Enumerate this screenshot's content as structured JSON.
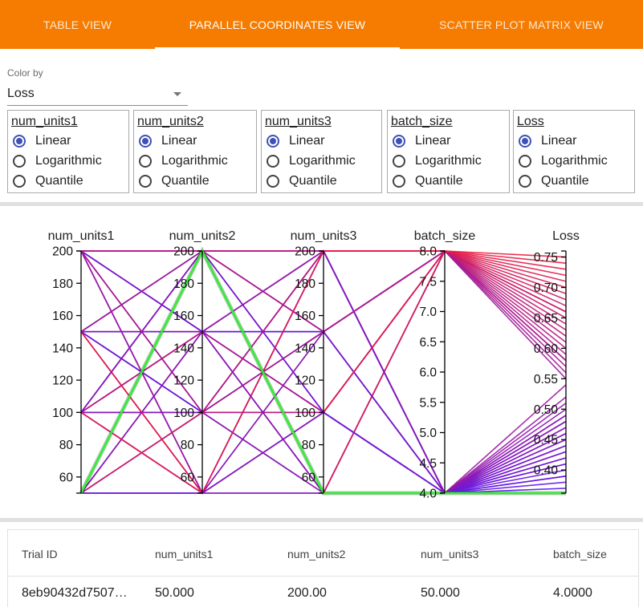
{
  "tabs": [
    {
      "label": "TABLE VIEW",
      "active": false
    },
    {
      "label": "PARALLEL COORDINATES VIEW",
      "active": true
    },
    {
      "label": "SCATTER PLOT MATRIX VIEW",
      "active": false
    }
  ],
  "color_by": {
    "label": "Color by",
    "value": "Loss"
  },
  "scale_options": [
    "Linear",
    "Logarithmic",
    "Quantile"
  ],
  "scales": [
    {
      "name": "num_units1",
      "selected": "Linear"
    },
    {
      "name": "num_units2",
      "selected": "Linear"
    },
    {
      "name": "num_units3",
      "selected": "Linear"
    },
    {
      "name": "batch_size",
      "selected": "Linear"
    },
    {
      "name": "Loss",
      "selected": "Linear"
    }
  ],
  "chart_data": {
    "type": "parallel_coordinates",
    "axes": [
      {
        "name": "num_units1",
        "range": [
          50,
          200
        ],
        "ticks": [
          "60",
          "80",
          "100",
          "120",
          "140",
          "160",
          "180",
          "200"
        ],
        "tick_values": [
          60,
          80,
          100,
          120,
          140,
          160,
          180,
          200
        ]
      },
      {
        "name": "num_units2",
        "range": [
          50,
          200
        ],
        "ticks": [
          "60",
          "80",
          "100",
          "120",
          "140",
          "160",
          "180",
          "200"
        ],
        "tick_values": [
          60,
          80,
          100,
          120,
          140,
          160,
          180,
          200
        ]
      },
      {
        "name": "num_units3",
        "range": [
          50,
          200
        ],
        "ticks": [
          "60",
          "80",
          "100",
          "120",
          "140",
          "160",
          "180",
          "200"
        ],
        "tick_values": [
          60,
          80,
          100,
          120,
          140,
          160,
          180,
          200
        ]
      },
      {
        "name": "batch_size",
        "range": [
          4.0,
          8.0
        ],
        "ticks": [
          "4.0",
          "4.5",
          "5.0",
          "5.5",
          "6.0",
          "6.5",
          "7.0",
          "7.5",
          "8.0"
        ],
        "tick_values": [
          4.0,
          4.5,
          5.0,
          5.5,
          6.0,
          6.5,
          7.0,
          7.5,
          8.0
        ]
      },
      {
        "name": "Loss",
        "range": [
          0.362,
          0.76
        ],
        "ticks": [
          "0.40",
          "0.45",
          "0.50",
          "0.55",
          "0.60",
          "0.65",
          "0.70",
          "0.75"
        ],
        "tick_values": [
          0.4,
          0.45,
          0.5,
          0.55,
          0.6,
          0.65,
          0.7,
          0.75
        ]
      }
    ],
    "color_scale": {
      "low": "#5a17f0",
      "high": "#f01b3a",
      "highlight": "#33ee33"
    },
    "highlighted_trial": [
      50,
      200,
      50,
      4,
      0.362
    ],
    "trials": [
      [
        200,
        200,
        50,
        4,
        0.44
      ],
      [
        200,
        150,
        100,
        8,
        0.63
      ],
      [
        200,
        100,
        200,
        4,
        0.47
      ],
      [
        200,
        50,
        150,
        8,
        0.71
      ],
      [
        200,
        200,
        150,
        4,
        0.52
      ],
      [
        200,
        100,
        50,
        8,
        0.58
      ],
      [
        200,
        150,
        200,
        4,
        0.43
      ],
      [
        200,
        50,
        100,
        8,
        0.74
      ],
      [
        150,
        200,
        100,
        4,
        0.49
      ],
      [
        150,
        100,
        150,
        8,
        0.66
      ],
      [
        150,
        50,
        200,
        4,
        0.41
      ],
      [
        150,
        150,
        50,
        8,
        0.61
      ],
      [
        150,
        200,
        200,
        4,
        0.46
      ],
      [
        150,
        50,
        50,
        8,
        0.69
      ],
      [
        150,
        100,
        100,
        4,
        0.54
      ],
      [
        150,
        150,
        150,
        8,
        0.57
      ],
      [
        100,
        200,
        150,
        8,
        0.64
      ],
      [
        100,
        50,
        100,
        4,
        0.42
      ],
      [
        100,
        150,
        200,
        8,
        0.72
      ],
      [
        100,
        100,
        50,
        4,
        0.48
      ],
      [
        100,
        200,
        100,
        8,
        0.6
      ],
      [
        100,
        50,
        150,
        4,
        0.45
      ],
      [
        100,
        150,
        50,
        8,
        0.67
      ],
      [
        100,
        100,
        200,
        4,
        0.51
      ],
      [
        50,
        150,
        150,
        4,
        0.44
      ],
      [
        50,
        100,
        100,
        8,
        0.62
      ],
      [
        50,
        50,
        200,
        4,
        0.39
      ],
      [
        50,
        200,
        200,
        8,
        0.7
      ],
      [
        50,
        150,
        100,
        4,
        0.5
      ],
      [
        50,
        100,
        150,
        8,
        0.59
      ],
      [
        50,
        50,
        50,
        4,
        0.4
      ],
      [
        50,
        200,
        150,
        8,
        0.68
      ],
      [
        200,
        150,
        150,
        4,
        0.37
      ],
      [
        150,
        100,
        200,
        4,
        0.38
      ],
      [
        100,
        200,
        200,
        4,
        0.39
      ],
      [
        200,
        200,
        100,
        4,
        0.41
      ],
      [
        150,
        150,
        100,
        4,
        0.43
      ],
      [
        100,
        100,
        150,
        4,
        0.46
      ],
      [
        200,
        50,
        200,
        4,
        0.47
      ],
      [
        50,
        150,
        200,
        4,
        0.49
      ],
      [
        150,
        200,
        150,
        8,
        0.55
      ],
      [
        200,
        100,
        150,
        8,
        0.56
      ],
      [
        100,
        150,
        100,
        8,
        0.58
      ],
      [
        50,
        100,
        200,
        8,
        0.65
      ],
      [
        200,
        200,
        200,
        8,
        0.66
      ],
      [
        150,
        50,
        100,
        8,
        0.73
      ],
      [
        100,
        50,
        200,
        8,
        0.75
      ],
      [
        50,
        50,
        100,
        4,
        0.42
      ],
      [
        200,
        150,
        50,
        4,
        0.45
      ],
      [
        100,
        200,
        50,
        4,
        0.48
      ]
    ]
  },
  "results_table": {
    "columns": [
      "Trial ID",
      "num_units1",
      "num_units2",
      "num_units3",
      "batch_size"
    ],
    "rows": [
      [
        "8eb90432d7507…",
        "50.000",
        "200.00",
        "50.000",
        "4.0000"
      ]
    ]
  }
}
